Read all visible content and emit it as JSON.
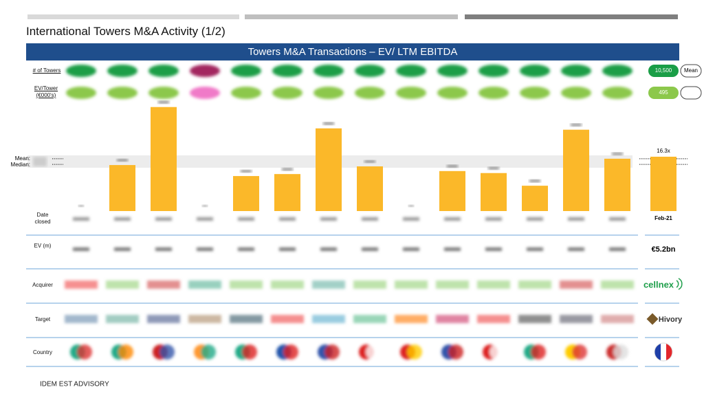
{
  "header": {
    "title": "International Towers M&A Activity (1/2)",
    "banner": "Towers M&A Transactions – EV/ LTM EBITDA"
  },
  "rows": {
    "towers": "# of Towers",
    "ev_tower": "EV/Tower (€000's)",
    "date": "Date closed",
    "ev": "EV (m)",
    "acquirer": "Acquirer",
    "target": "Target",
    "country": "Country"
  },
  "highlight": {
    "towers": "10,500",
    "towers_note": "Mean",
    "ev_tower": "495",
    "ev": "€5.2bn",
    "acquirer": "cellnex",
    "target": "Hivory"
  },
  "chart_data": {
    "type": "bar",
    "categories": [
      null,
      null,
      null,
      null,
      null,
      null,
      null,
      null,
      null,
      null,
      null,
      null,
      null,
      null,
      "Feb-21"
    ],
    "values": [
      null,
      13.8,
      31.2,
      null,
      10.5,
      11.1,
      24.8,
      13.4,
      null,
      12.0,
      11.4,
      7.6,
      24.4,
      15.7,
      16.3
    ],
    "value_labels": [
      null,
      null,
      null,
      null,
      null,
      null,
      null,
      null,
      null,
      null,
      null,
      null,
      null,
      null,
      "16.3x"
    ],
    "color": "#fbb829",
    "mean_label": "Mean:",
    "median_label": "Median:",
    "mean": 15.7,
    "median": 14.0
  },
  "footer": {
    "company": "IDEM EST ADVISORY"
  }
}
